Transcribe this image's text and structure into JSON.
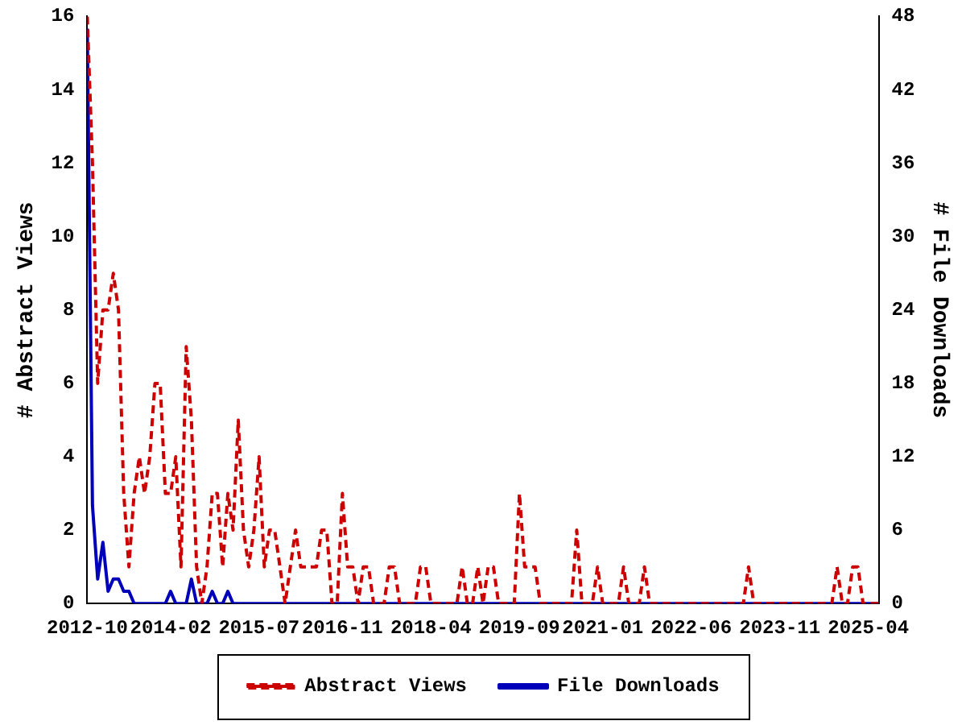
{
  "chart_data": {
    "type": "line",
    "ylabel": "# Abstract Views",
    "y2label": "# File Downloads",
    "x": [
      "2012-10",
      "2012-11",
      "2012-12",
      "2013-01",
      "2013-02",
      "2013-03",
      "2013-04",
      "2013-05",
      "2013-06",
      "2013-07",
      "2013-08",
      "2013-09",
      "2013-10",
      "2013-11",
      "2013-12",
      "2014-01",
      "2014-02",
      "2014-03",
      "2014-04",
      "2014-05",
      "2014-06",
      "2014-07",
      "2014-08",
      "2014-09",
      "2014-10",
      "2014-11",
      "2014-12",
      "2015-01",
      "2015-02",
      "2015-03",
      "2015-04",
      "2015-05",
      "2015-06",
      "2015-07",
      "2015-08",
      "2015-09",
      "2015-10",
      "2015-11",
      "2015-12",
      "2016-01",
      "2016-02",
      "2016-03",
      "2016-04",
      "2016-05",
      "2016-06",
      "2016-07",
      "2016-08",
      "2016-09",
      "2016-10",
      "2016-11",
      "2016-12",
      "2017-01",
      "2017-02",
      "2017-03",
      "2017-04",
      "2017-05",
      "2017-06",
      "2017-07",
      "2017-08",
      "2017-09",
      "2017-10",
      "2017-11",
      "2017-12",
      "2018-01",
      "2018-02",
      "2018-03",
      "2018-04",
      "2018-05",
      "2018-06",
      "2018-07",
      "2018-08",
      "2018-09",
      "2018-10",
      "2018-11",
      "2018-12",
      "2019-01",
      "2019-02",
      "2019-03",
      "2019-04",
      "2019-05",
      "2019-06",
      "2019-07",
      "2019-08",
      "2019-09",
      "2019-10",
      "2019-11",
      "2019-12",
      "2020-01",
      "2020-02",
      "2020-03",
      "2020-04",
      "2020-05",
      "2020-06",
      "2020-07",
      "2020-08",
      "2020-09",
      "2020-10",
      "2020-11",
      "2020-12",
      "2021-01",
      "2021-02",
      "2021-03",
      "2021-04",
      "2021-05",
      "2021-06",
      "2021-07",
      "2021-08",
      "2021-09",
      "2021-10",
      "2021-11",
      "2021-12",
      "2022-01",
      "2022-02",
      "2022-03",
      "2022-04",
      "2022-05",
      "2022-06",
      "2022-07",
      "2022-08",
      "2022-09",
      "2022-10",
      "2022-11",
      "2022-12",
      "2023-01",
      "2023-02",
      "2023-03",
      "2023-04",
      "2023-05",
      "2023-06",
      "2023-07",
      "2023-08",
      "2023-09",
      "2023-10",
      "2023-11",
      "2023-12",
      "2024-01",
      "2024-02",
      "2024-03",
      "2024-04",
      "2024-05",
      "2024-06",
      "2024-07",
      "2024-08",
      "2024-09",
      "2024-10",
      "2024-11",
      "2024-12",
      "2025-01",
      "2025-02",
      "2025-03",
      "2025-04",
      "2025-05",
      "2025-06"
    ],
    "series": [
      {
        "name": "Abstract Views",
        "color": "#cc0000",
        "line_style": "dashed",
        "values": [
          16,
          12,
          6,
          8,
          8,
          9,
          8,
          3,
          1,
          3,
          4,
          3,
          4,
          6,
          6,
          3,
          3,
          4,
          1,
          7,
          5,
          1,
          0,
          1,
          3,
          3,
          1,
          3,
          2,
          5,
          2,
          1,
          2,
          4,
          1,
          2,
          2,
          1,
          0,
          1,
          2,
          1,
          1,
          1,
          1,
          2,
          2,
          0,
          0,
          3,
          1,
          1,
          0,
          1,
          1,
          0,
          0,
          0,
          1,
          1,
          0,
          0,
          0,
          0,
          1,
          1,
          0,
          0,
          0,
          0,
          0,
          0,
          1,
          0,
          0,
          1,
          0,
          1,
          1,
          0,
          0,
          0,
          0,
          3,
          1,
          1,
          1,
          0,
          0,
          0,
          0,
          0,
          0,
          0,
          2,
          0,
          0,
          0,
          1,
          0,
          0,
          0,
          0,
          1,
          0,
          0,
          0,
          1,
          0,
          0,
          0,
          0,
          0,
          0,
          0,
          0,
          0,
          0,
          0,
          0,
          0,
          0,
          0,
          0,
          0,
          0,
          0,
          1,
          0,
          0,
          0,
          0,
          0,
          0,
          0,
          0,
          0,
          0,
          0,
          0,
          0,
          0,
          0,
          0,
          1,
          0,
          0,
          1,
          1,
          0,
          0,
          0,
          0
        ]
      },
      {
        "name": "File Downloads",
        "color": "#0000bb",
        "line_style": "solid",
        "axis": "y2",
        "values": [
          47,
          8,
          2,
          5,
          1,
          2,
          2,
          1,
          1,
          0,
          0,
          0,
          0,
          0,
          0,
          0,
          1,
          0,
          0,
          0,
          2,
          0,
          0,
          0,
          1,
          0,
          0,
          1,
          0,
          0,
          0,
          0,
          0,
          0,
          0,
          0,
          0,
          0,
          0,
          0,
          0,
          0,
          0,
          0,
          0,
          0,
          0,
          0,
          0,
          0,
          0,
          0,
          0,
          0,
          0,
          0,
          0,
          0,
          0,
          0,
          0,
          0,
          0,
          0,
          0,
          0,
          0,
          0,
          0,
          0,
          0,
          0,
          0,
          0,
          0,
          0,
          0,
          0,
          0,
          0,
          0,
          0,
          0,
          0,
          0,
          0,
          0,
          0,
          0,
          0,
          0,
          0,
          0,
          0,
          0,
          0,
          0,
          0,
          0,
          0,
          0,
          0,
          0,
          0,
          0,
          0,
          0,
          0,
          0,
          0,
          0,
          0,
          0,
          0,
          0,
          0,
          0,
          0,
          0,
          0,
          0,
          0,
          0,
          0,
          0,
          0,
          0,
          0,
          0,
          0,
          0,
          0,
          0,
          0,
          0,
          0,
          0,
          0,
          0,
          0,
          0,
          0,
          0,
          0,
          0,
          0,
          0,
          0,
          0,
          0,
          0,
          0,
          0
        ]
      }
    ],
    "xlim": [
      "2012-10",
      "2025-06"
    ],
    "xticks": [
      "2012-10",
      "2014-02",
      "2015-07",
      "2016-11",
      "2018-04",
      "2019-09",
      "2021-01",
      "2022-06",
      "2023-11",
      "2025-04"
    ],
    "ylim": [
      0,
      16
    ],
    "yticks": [
      0,
      2,
      4,
      6,
      8,
      10,
      12,
      14,
      16
    ],
    "y2lim": [
      0,
      48
    ],
    "y2ticks": [
      0,
      6,
      12,
      18,
      24,
      30,
      36,
      42,
      48
    ],
    "legend": "bottom",
    "grid": false,
    "marker": "none"
  }
}
